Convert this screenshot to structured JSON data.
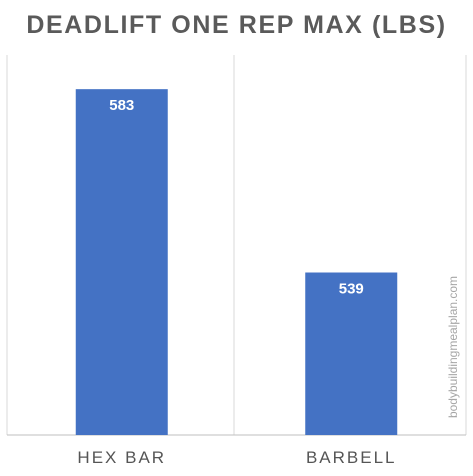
{
  "chart_data": {
    "type": "bar",
    "title": "DEADLIFT ONE REP MAX (LBS)",
    "categories": [
      "HEX BAR",
      "BARBELL"
    ],
    "values": [
      583,
      539
    ],
    "xlabel": "",
    "ylabel": "",
    "ylim": [
      500,
      590
    ],
    "grid": false,
    "bar_color": "#4472c4",
    "data_labels": true
  },
  "watermark": "bodybuildingmealplan.com",
  "colors": {
    "divider": "#d9d9d9",
    "axis": "#bfbfbf"
  }
}
